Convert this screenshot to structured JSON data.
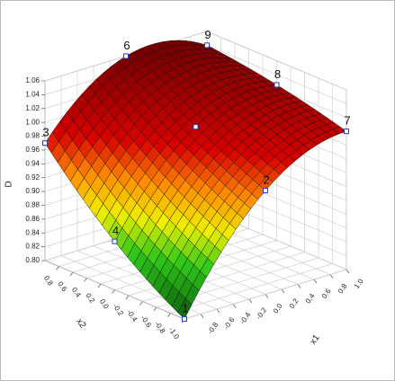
{
  "chart_data": {
    "type": "surface",
    "zlabel": "D",
    "xlabel": "x1",
    "ylabel": "x2",
    "xlim": [
      -1,
      1
    ],
    "ylim": [
      -1,
      1
    ],
    "zlim": [
      0.8,
      1.06
    ],
    "xticks": [
      {
        "value": -0.8,
        "label": "-0.8"
      },
      {
        "value": -0.6,
        "label": "-0.6"
      },
      {
        "value": -0.4,
        "label": "-0.4"
      },
      {
        "value": -0.2,
        "label": "-0.2"
      },
      {
        "value": 0,
        "label": "0.0"
      },
      0.2,
      0.4,
      0.6,
      0.8,
      {
        "value": 1,
        "label": "1.0"
      }
    ],
    "yticks": [
      {
        "value": -1,
        "label": "-1.0"
      },
      {
        "value": -0.8,
        "label": "-0.8"
      },
      {
        "value": -0.6,
        "label": "-0.6"
      },
      {
        "value": -0.4,
        "label": "-0.4"
      },
      {
        "value": -0.2,
        "label": "-0.2"
      },
      {
        "value": 0,
        "label": "0.0"
      },
      0.2,
      0.4,
      0.6,
      0.8
    ],
    "zticks": [
      {
        "value": 0.8,
        "label": "0.80"
      },
      0.82,
      0.84,
      0.86,
      0.88,
      {
        "value": 0.9,
        "label": "0.90"
      },
      0.92,
      0.94,
      0.96,
      0.98,
      {
        "value": 1,
        "label": "1.00"
      },
      1.02,
      1.04,
      1.06
    ],
    "grid": true,
    "colormap": [
      [
        0.8,
        "#0a5a0a"
      ],
      [
        0.86,
        "#2fc81a"
      ],
      [
        0.9,
        "#f0f000"
      ],
      [
        0.94,
        "#ff8c00"
      ],
      [
        0.98,
        "#d80000"
      ],
      [
        1.06,
        "#7a0000"
      ]
    ],
    "points": [
      {
        "label": "1",
        "x": -1,
        "y": -1,
        "value": 0.8
      },
      {
        "label": "2",
        "x": 0,
        "y": -1,
        "value": 0.95
      },
      {
        "label": "3",
        "x": -1,
        "y": 1,
        "value": 0.97
      },
      {
        "label": "4",
        "x": -1,
        "y": 0,
        "value": 0.87
      },
      {
        "x": 0,
        "y": 0,
        "value": 1.0
      },
      {
        "label": "6",
        "x": 0,
        "y": 1,
        "value": 1.06
      },
      {
        "label": "7",
        "x": 1,
        "y": -1,
        "value": 1.0
      },
      {
        "label": "8",
        "x": 1,
        "y": 0,
        "value": 1.025
      },
      {
        "label": "9",
        "x": 1,
        "y": 1,
        "value": 1.04
      }
    ]
  }
}
